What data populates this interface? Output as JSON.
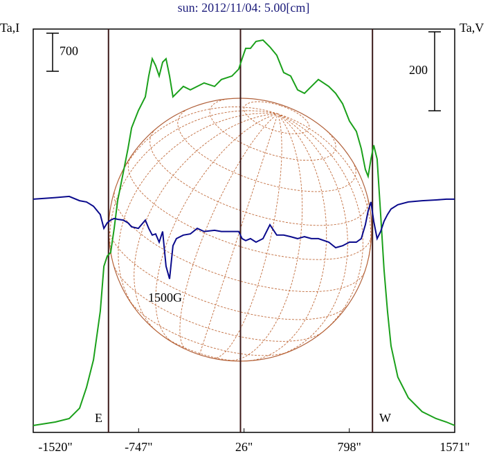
{
  "chart_data": {
    "type": "line",
    "title": "sun: 2012/11/04: 5.00[cm]",
    "y_label": "Ta,I",
    "y2_label": "Ta,V",
    "x": [
      -1520,
      -1358,
      -1256,
      -1180,
      -1129,
      -1078,
      -1028,
      -1002,
      -977,
      -952,
      -926,
      -901,
      -860,
      -825,
      -799,
      -749,
      -698,
      -673,
      -647,
      -622,
      -596,
      -571,
      -546,
      -520,
      -495,
      -470,
      -419,
      -368,
      -317,
      -267,
      -190,
      -140,
      -63,
      -13,
      12,
      38,
      73,
      114,
      165,
      216,
      266,
      317,
      368,
      419,
      469,
      520,
      571,
      647,
      698,
      749,
      799,
      850,
      886,
      916,
      936,
      957,
      977,
      1002,
      1028,
      1053,
      1078,
      1104,
      1154,
      1231,
      1332,
      1434,
      1510,
      1571
    ],
    "series": [
      {
        "name": "Ta,I",
        "color": "#1aa01a",
        "axis": "y",
        "values": [
          127,
          191,
          255,
          445,
          827,
          1337,
          2228,
          3055,
          3246,
          3310,
          3755,
          4265,
          4774,
          5219,
          5601,
          5919,
          6174,
          6556,
          6874,
          6747,
          6556,
          6811,
          6874,
          6556,
          6174,
          6238,
          6365,
          6301,
          6365,
          6429,
          6365,
          6492,
          6556,
          6683,
          6874,
          7065,
          7065,
          7192,
          7218,
          7091,
          6938,
          6620,
          6556,
          6301,
          6238,
          6365,
          6492,
          6365,
          6238,
          6047,
          5729,
          5538,
          5219,
          4837,
          4710,
          5028,
          5283,
          5028,
          4010,
          2992,
          2228,
          1591,
          1018,
          636,
          382,
          255,
          191,
          127
        ]
      },
      {
        "name": "Ta,V",
        "color": "#0a0a8c",
        "axis": "y2",
        "values": [
          0,
          4,
          7,
          -4,
          -7,
          -18,
          -39,
          -74,
          -60,
          -53,
          -49,
          -51,
          -53,
          -60,
          -70,
          -74,
          -53,
          -74,
          -91,
          -88,
          -109,
          -82,
          -170,
          -202,
          -118,
          -100,
          -91,
          -88,
          -74,
          -82,
          -79,
          -82,
          -82,
          -82,
          -100,
          -105,
          -100,
          -109,
          -100,
          -65,
          -91,
          -91,
          -95,
          -100,
          -95,
          -100,
          -100,
          -109,
          -123,
          -118,
          -109,
          -109,
          -100,
          -65,
          -30,
          -7,
          -56,
          -100,
          -82,
          -56,
          -39,
          -25,
          -14,
          -7,
          -4,
          -2,
          0,
          0
        ]
      }
    ],
    "xlim": [
      -1520,
      1571
    ],
    "xticks": [
      {
        "value": -1520,
        "label": "-1520\""
      },
      {
        "value": -747,
        "label": "-747\""
      },
      {
        "value": 26,
        "label": "26\""
      },
      {
        "value": 798,
        "label": "798\""
      },
      {
        "value": 1571,
        "label": "1571\""
      }
    ],
    "ylim": [
      0,
      7420
    ],
    "y2lim": [
      -591,
      431
    ],
    "scale_bars": [
      {
        "axis": "y",
        "value": 700
      },
      {
        "axis": "y2",
        "value": 200
      }
    ],
    "vertical_lines": [
      -968,
      0,
      968
    ],
    "annotations": [
      "E",
      "W",
      "1500G"
    ]
  }
}
